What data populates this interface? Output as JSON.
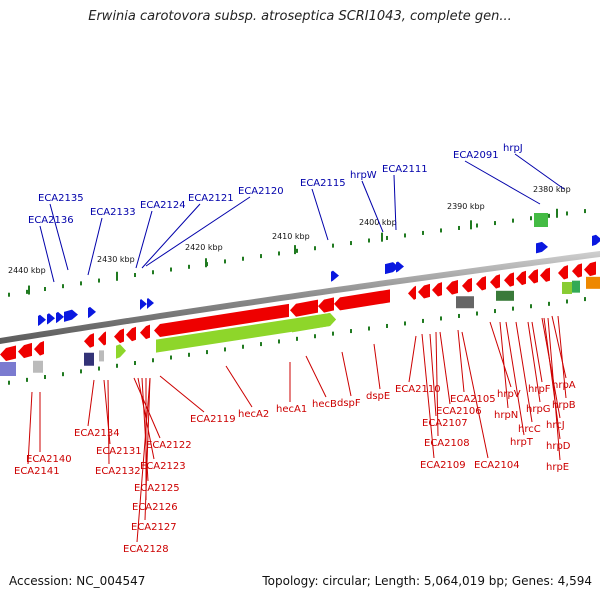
{
  "title": "Erwinia carotovora subsp. atroseptica SCRI1043, complete gen...",
  "footer": {
    "accession": "Accession: NC_004547",
    "summary": "Topology: circular; Length: 5,064,019 bp; Genes: 4,594"
  },
  "colors": {
    "forward_gene": "#0a18e0",
    "reverse_gene": "#ee0000",
    "rna": "#8ed62a",
    "backbone": "#8a8a8a",
    "tick": "#207a20",
    "label_red": "#cc0000",
    "label_blue": "#0000aa"
  },
  "kbp_scale": [
    "2440 kbp",
    "2430 kbp",
    "2420 kbp",
    "2410 kbp",
    "2400 kbp",
    "2390 kbp",
    "2380 kbp"
  ],
  "upper_labels": [
    "ECA2135",
    "ECA2136",
    "ECA2133",
    "ECA2124",
    "ECA2121",
    "ECA2120",
    "ECA2115",
    "hrpW",
    "ECA2111",
    "ECA2091",
    "hrpJ"
  ],
  "lower_labels": [
    "ECA2141",
    "ECA2140",
    "ECA2134",
    "ECA2131",
    "ECA2132",
    "ECA2122",
    "ECA2123",
    "ECA2125",
    "ECA2126",
    "ECA2127",
    "ECA2128",
    "ECA2119",
    "hecA2",
    "hecA1",
    "hecB",
    "dspF",
    "dspE",
    "ECA2110",
    "ECA2107",
    "ECA2108",
    "ECA2109",
    "ECA2106",
    "ECA2105",
    "ECA2104",
    "hrpV",
    "hrpN",
    "hrpT",
    "hrcC",
    "hrpG",
    "hrpF",
    "hrcJ",
    "hrpD",
    "hrpE",
    "hrpA",
    "hrpB"
  ]
}
